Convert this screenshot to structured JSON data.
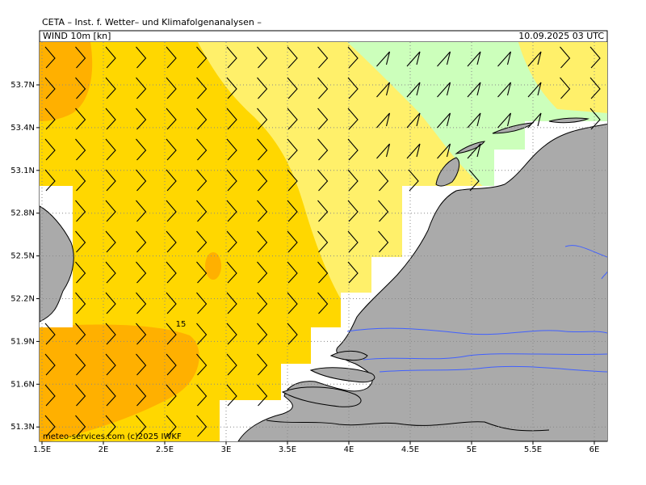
{
  "header": {
    "title": "CETA – Inst. f. Wetter– und Klimafolgenanalysen –",
    "field": "WIND 10m [kn]",
    "datetime": "10.09.2025 03 UTC"
  },
  "axes": {
    "lat_labels": [
      "53.7N",
      "53.4N",
      "53.1N",
      "52.8N",
      "52.5N",
      "52.2N",
      "51.9N",
      "51.6N",
      "51.3N"
    ],
    "lon_labels": [
      "1.5E",
      "2E",
      "2.5E",
      "3E",
      "3.5E",
      "4E",
      "4.5E",
      "5E",
      "5.5E",
      "6E"
    ]
  },
  "contour_label": "15",
  "footer": "meteo-services.com  (c)2025 IWKF"
}
